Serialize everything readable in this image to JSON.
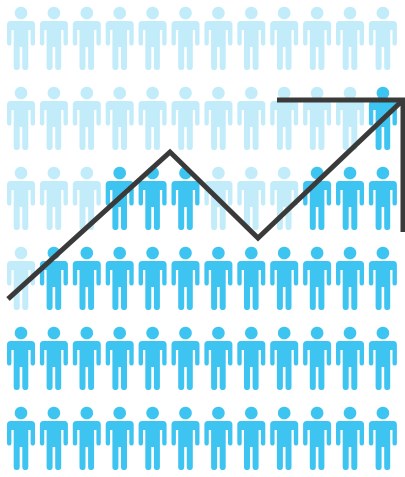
{
  "grid": {
    "rows": 6,
    "cols": 12
  },
  "colors": {
    "light": "#c2ecf9",
    "dark": "#3ec4f0",
    "trend_line": "#3a3a3a",
    "background": "#ffffff"
  },
  "pattern": {
    "dark_cells": [
      {
        "row": 1,
        "col": 11
      },
      {
        "row": 2,
        "col": 3
      },
      {
        "row": 2,
        "col": 4
      },
      {
        "row": 2,
        "col": 5
      },
      {
        "row": 2,
        "col": 9
      },
      {
        "row": 2,
        "col": 10
      },
      {
        "row": 2,
        "col": 11
      },
      {
        "row": 3,
        "col": 1
      },
      {
        "row": 3,
        "col": 2
      },
      {
        "row": 3,
        "col": 3
      },
      {
        "row": 3,
        "col": 4
      },
      {
        "row": 3,
        "col": 5
      },
      {
        "row": 3,
        "col": 6
      },
      {
        "row": 3,
        "col": 7
      },
      {
        "row": 3,
        "col": 8
      },
      {
        "row": 3,
        "col": 9
      },
      {
        "row": 3,
        "col": 10
      },
      {
        "row": 3,
        "col": 11
      }
    ],
    "full_dark_rows_from": 4
  },
  "icon": {
    "name": "person-icon"
  },
  "trend": {
    "name": "upward-trend-arrow"
  }
}
